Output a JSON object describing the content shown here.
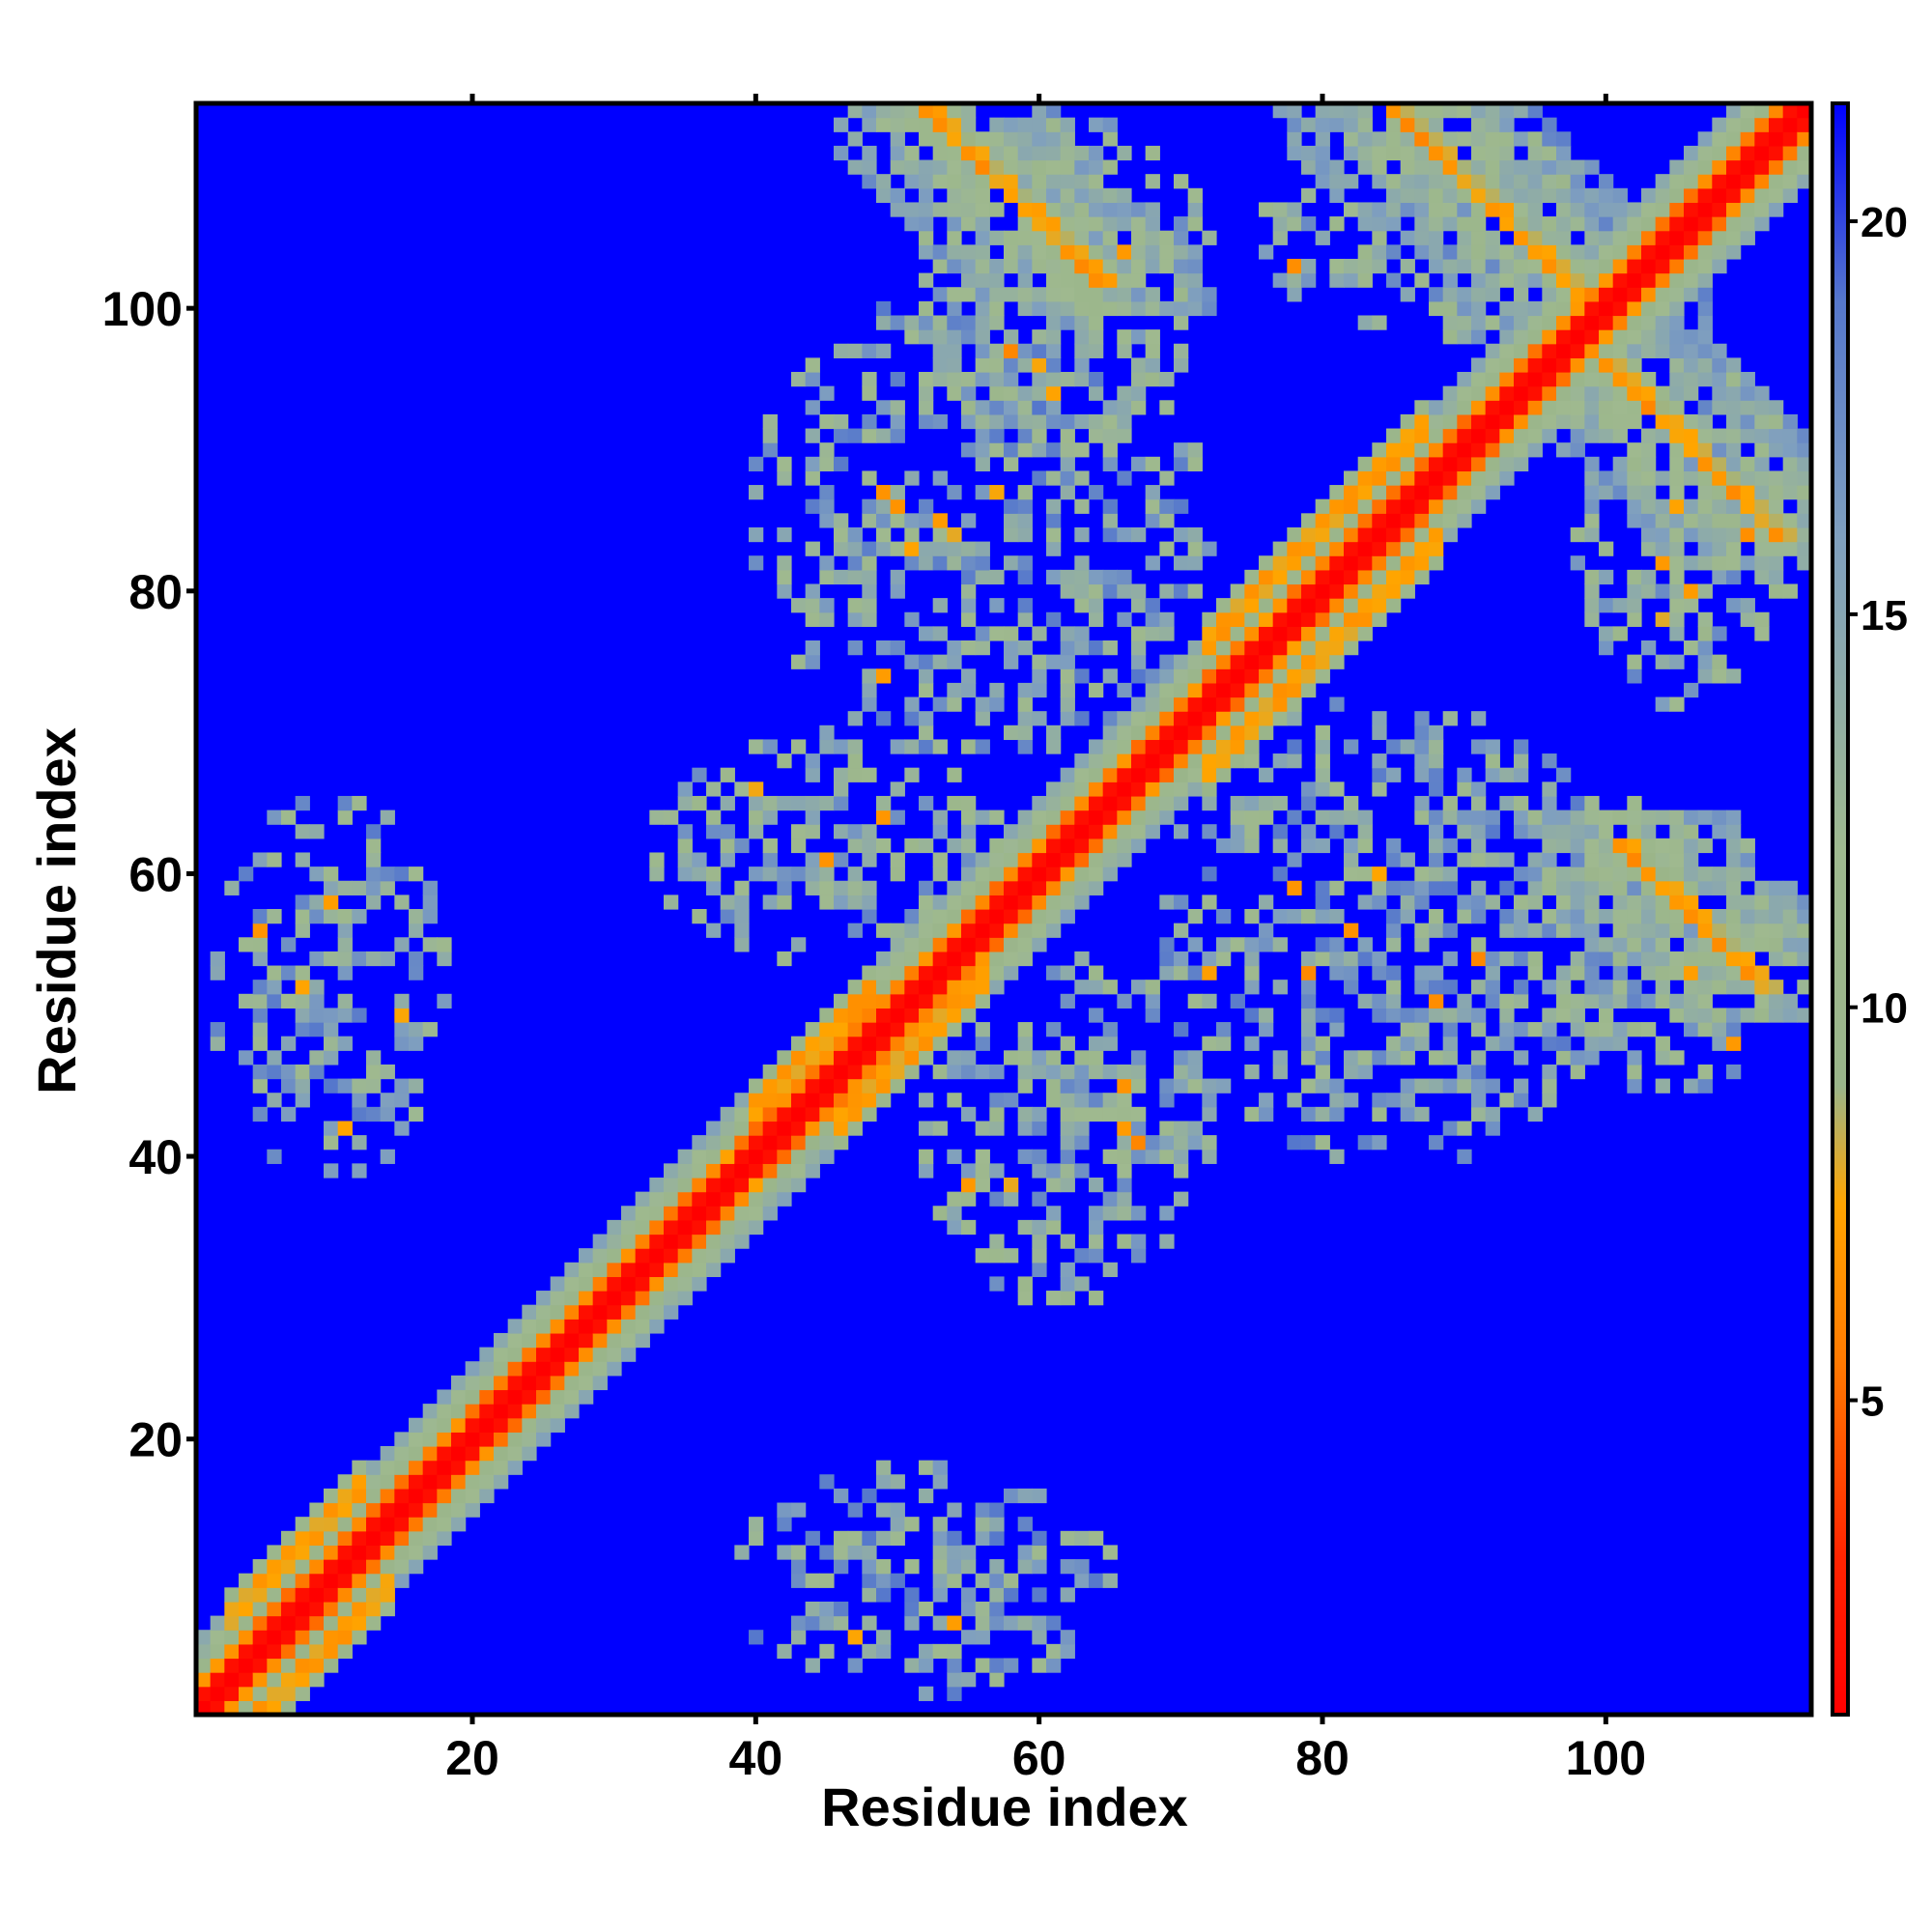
{
  "chart_data": {
    "type": "heatmap",
    "title": "",
    "xlabel": "Residue index",
    "ylabel": "Residue index",
    "n_residues": 114,
    "xlim": [
      0.5,
      114.5
    ],
    "ylim": [
      0.5,
      114.5
    ],
    "x_ticks": [
      20,
      40,
      60,
      80,
      100
    ],
    "y_ticks": [
      20,
      40,
      60,
      80,
      100
    ],
    "colorbar": {
      "min": 1,
      "max": 21.5,
      "ticks": [
        5,
        10,
        15,
        20
      ],
      "stops": [
        {
          "value": 1,
          "color": "#ff0000"
        },
        {
          "value": 3,
          "color": "#ff2400"
        },
        {
          "value": 5.5,
          "color": "#ff7a00"
        },
        {
          "value": 7.5,
          "color": "#ffa500"
        },
        {
          "value": 9,
          "color": "#9ab58a"
        },
        {
          "value": 12,
          "color": "#9fb98f"
        },
        {
          "value": 16,
          "color": "#7f9fbf"
        },
        {
          "value": 19,
          "color": "#5577cc"
        },
        {
          "value": 21.5,
          "color": "#0000ff"
        }
      ]
    },
    "background_value": 21.5,
    "features": [
      {
        "kind": "diagonal",
        "from": 1,
        "to": 114,
        "halfwidth": 5,
        "core": 1.5
      },
      {
        "kind": "parallel_band",
        "x1": 40,
        "x2": 48,
        "offset": 3,
        "value": 6.5,
        "width": 2
      },
      {
        "kind": "parallel_band",
        "x1": 46,
        "x2": 56,
        "offset": -3,
        "value": 6.5,
        "width": 2
      },
      {
        "kind": "parallel_band",
        "x1": 72,
        "x2": 88,
        "offset": -4,
        "value": 6.5,
        "width": 2
      },
      {
        "kind": "parallel_band",
        "x1": 72,
        "x2": 87,
        "offset": 4,
        "value": 6.5,
        "width": 2
      },
      {
        "kind": "parallel_band",
        "x1": 1,
        "x2": 14,
        "offset": -4,
        "value": 6.5,
        "width": 2
      },
      {
        "kind": "parallel_band",
        "x1": 3,
        "x2": 12,
        "offset": 4,
        "value": 6.5,
        "width": 2
      },
      {
        "kind": "anti_band",
        "cx": 58,
        "cy": 108,
        "len": 6,
        "value": 6,
        "halo": 7
      },
      {
        "kind": "anti_band",
        "cx": 92,
        "cy": 107,
        "len": 7,
        "value": 6,
        "halo": 8
      },
      {
        "kind": "anti_band",
        "cx": 106,
        "cy": 90,
        "len": 6,
        "value": 6,
        "halo": 7
      },
      {
        "kind": "anti_band",
        "cx": 106,
        "cy": 57,
        "len": 5,
        "value": 6,
        "halo": 7
      },
      {
        "kind": "patch",
        "cx": 10,
        "cy": 52,
        "rx": 8,
        "ry": 13,
        "value": 14,
        "density": 0.55
      },
      {
        "kind": "patch",
        "cx": 52,
        "cy": 10,
        "rx": 13,
        "ry": 8,
        "value": 14,
        "density": 0.55
      },
      {
        "kind": "patch",
        "cx": 56,
        "cy": 85,
        "rx": 16,
        "ry": 16,
        "value": 14,
        "density": 0.55
      },
      {
        "kind": "patch",
        "cx": 85,
        "cy": 56,
        "rx": 16,
        "ry": 16,
        "value": 14,
        "density": 0.55
      },
      {
        "kind": "patch",
        "cx": 45,
        "cy": 62,
        "rx": 12,
        "ry": 8,
        "value": 13,
        "density": 0.6
      },
      {
        "kind": "patch",
        "cx": 62,
        "cy": 42,
        "rx": 10,
        "ry": 12,
        "value": 13,
        "density": 0.6
      },
      {
        "kind": "patch",
        "cx": 62,
        "cy": 102,
        "rx": 10,
        "ry": 12,
        "value": 13,
        "density": 0.55
      },
      {
        "kind": "patch",
        "cx": 88,
        "cy": 106,
        "rx": 12,
        "ry": 8,
        "value": 13,
        "density": 0.55
      },
      {
        "kind": "patch",
        "cx": 106,
        "cy": 84,
        "rx": 8,
        "ry": 12,
        "value": 13,
        "density": 0.55
      },
      {
        "kind": "patch",
        "cx": 104,
        "cy": 55,
        "rx": 10,
        "ry": 10,
        "value": 13,
        "density": 0.6
      }
    ]
  }
}
